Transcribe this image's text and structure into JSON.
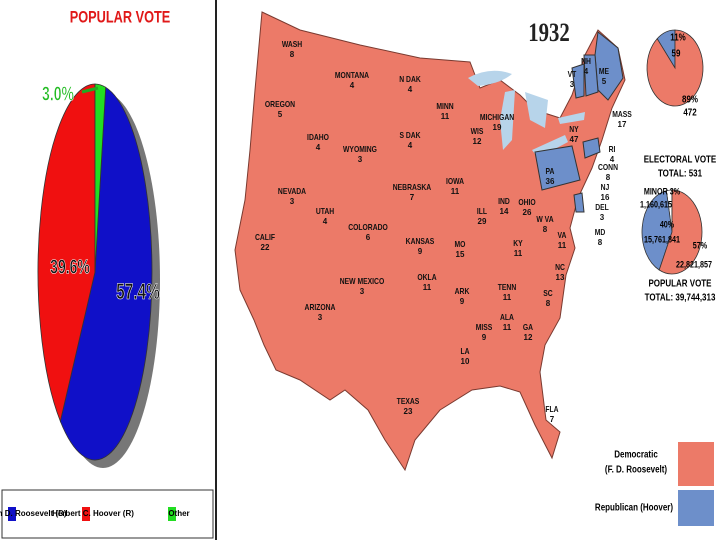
{
  "chart_data": [
    {
      "type": "pie",
      "title": "POPULAR VOTE",
      "categories": [
        "Franklin D. Roosevelt (D)",
        "Herbert C. Hoover (R)",
        "Other"
      ],
      "values": [
        57.4,
        39.6,
        3.0
      ],
      "value_labels": [
        "57.4%",
        "39.6%",
        "3.0%"
      ],
      "colors": [
        "#1010c8",
        "#f01010",
        "#22dd22"
      ]
    },
    {
      "type": "pie",
      "title": "ELECTORAL VOTE",
      "subtitle": "TOTAL: 531",
      "values": [
        11,
        89
      ],
      "value_labels": [
        "11%",
        "89%"
      ],
      "counts": [
        59,
        472
      ],
      "colors": [
        "#6d8fca",
        "#ec7a68"
      ]
    },
    {
      "type": "pie",
      "title": "POPULAR VOTE",
      "subtitle": "TOTAL: 39,744,313",
      "values": [
        3,
        40,
        57
      ],
      "value_labels": [
        "MINOR 3%",
        "40%",
        "57%"
      ],
      "counts": [
        "1,160,615",
        "15,761,841",
        "22,821,857"
      ],
      "colors": [
        "#ffffff",
        "#6d8fca",
        "#ec7a68"
      ]
    }
  ],
  "map": {
    "year": "1932",
    "legend": [
      {
        "label": "Democratic",
        "sublabel": "(F. D. Roosevelt)",
        "color": "#ec7a68"
      },
      {
        "label": "Republican (Hoover)",
        "color": "#6d8fca"
      }
    ],
    "states": [
      {
        "name": "WASH",
        "votes": 8
      },
      {
        "name": "OREGON",
        "votes": 5
      },
      {
        "name": "CALIF",
        "votes": 22
      },
      {
        "name": "NEVADA",
        "votes": 3
      },
      {
        "name": "IDAHO",
        "votes": 4
      },
      {
        "name": "MONTANA",
        "votes": 4
      },
      {
        "name": "WYOMING",
        "votes": 3
      },
      {
        "name": "UTAH",
        "votes": 4
      },
      {
        "name": "ARIZONA",
        "votes": 3
      },
      {
        "name": "COLORADO",
        "votes": 6
      },
      {
        "name": "NEW MEXICO",
        "votes": 3
      },
      {
        "name": "N DAK",
        "votes": 4
      },
      {
        "name": "S DAK",
        "votes": 4
      },
      {
        "name": "NEBRASKA",
        "votes": 7
      },
      {
        "name": "KANSAS",
        "votes": 9
      },
      {
        "name": "OKLA",
        "votes": 11
      },
      {
        "name": "TEXAS",
        "votes": 23
      },
      {
        "name": "MINN",
        "votes": 11
      },
      {
        "name": "IOWA",
        "votes": 11
      },
      {
        "name": "MO",
        "votes": 15
      },
      {
        "name": "ARK",
        "votes": 9
      },
      {
        "name": "LA",
        "votes": 10
      },
      {
        "name": "WIS",
        "votes": 12
      },
      {
        "name": "ILL",
        "votes": 29
      },
      {
        "name": "MISS",
        "votes": 9
      },
      {
        "name": "TENN",
        "votes": 11
      },
      {
        "name": "ALA",
        "votes": 11
      },
      {
        "name": "IND",
        "votes": 14
      },
      {
        "name": "KY",
        "votes": 11
      },
      {
        "name": "OHIO",
        "votes": 26
      },
      {
        "name": "MICHIGAN",
        "votes": 19
      },
      {
        "name": "GA",
        "votes": 12
      },
      {
        "name": "FLA",
        "votes": 7
      },
      {
        "name": "SC",
        "votes": 8
      },
      {
        "name": "NC",
        "votes": 13
      },
      {
        "name": "VA",
        "votes": 11
      },
      {
        "name": "W VA",
        "votes": 8
      },
      {
        "name": "PA",
        "votes": 36
      },
      {
        "name": "NY",
        "votes": 47
      },
      {
        "name": "MD",
        "votes": 8
      },
      {
        "name": "DEL",
        "votes": 3
      },
      {
        "name": "NJ",
        "votes": 16
      },
      {
        "name": "CONN",
        "votes": 8
      },
      {
        "name": "RI",
        "votes": 4
      },
      {
        "name": "MASS",
        "votes": 17
      },
      {
        "name": "VT",
        "votes": 3
      },
      {
        "name": "NH",
        "votes": 4
      },
      {
        "name": "ME",
        "votes": 5
      }
    ]
  }
}
